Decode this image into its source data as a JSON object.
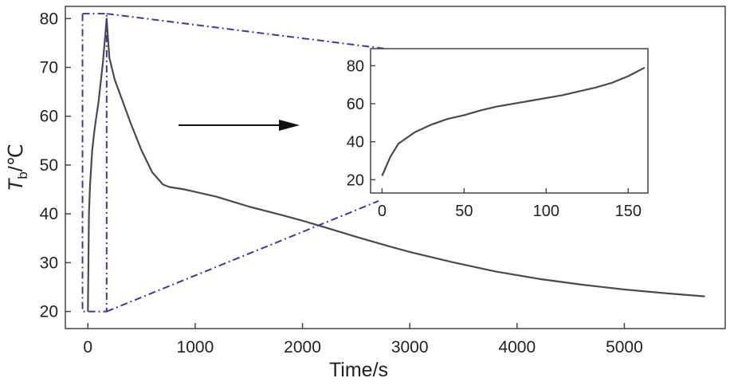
{
  "chart_data": [
    {
      "type": "line",
      "xlabel": "Time/s",
      "ylabel": {
        "main": "T",
        "sub": "b",
        "unit": "/℃"
      },
      "xlim": [
        -210,
        5940
      ],
      "ylim": [
        16.5,
        82.5
      ],
      "xticks": [
        0,
        1000,
        2000,
        3000,
        4000,
        5000
      ],
      "yticks": [
        20,
        30,
        40,
        50,
        60,
        70,
        80
      ],
      "grid": false,
      "color": "#4a4a4a",
      "series": [
        {
          "x": [
            0,
            10,
            20,
            40,
            60,
            80,
            100,
            120,
            140,
            160,
            175,
            200,
            250,
            300,
            400,
            500,
            600,
            700,
            760,
            900,
            1000,
            1200,
            1500,
            1800,
            2000,
            2200,
            2500,
            2800,
            3000,
            3400,
            3800,
            4200,
            4600,
            5000,
            5400,
            5750
          ],
          "y": [
            20,
            40,
            46,
            53,
            57,
            60,
            63,
            67,
            71,
            76,
            80,
            72,
            67.5,
            64.5,
            58.5,
            53,
            48.5,
            46,
            45.5,
            45,
            44.5,
            43.5,
            41.5,
            39.8,
            38.6,
            37.3,
            35.3,
            33.4,
            32.2,
            30.1,
            28.2,
            26.7,
            25.5,
            24.5,
            23.7,
            23.1
          ]
        }
      ],
      "zoom_box": {
        "x": [
          -50,
          175
        ],
        "y": [
          20,
          81
        ]
      },
      "annotation_arrow": true,
      "zoom_color": "#3a3aa6"
    },
    {
      "type": "line",
      "role": "inset",
      "xlim": [
        -7,
        162
      ],
      "ylim": [
        13,
        89
      ],
      "xticks": [
        0,
        50,
        100,
        150
      ],
      "yticks": [
        20,
        40,
        60,
        80
      ],
      "grid": false,
      "color": "#4a4a4a",
      "series": [
        {
          "x": [
            0,
            5,
            10,
            15,
            20,
            30,
            40,
            50,
            60,
            70,
            80,
            90,
            100,
            110,
            120,
            130,
            140,
            150,
            160
          ],
          "y": [
            22,
            32,
            39,
            42,
            45,
            49,
            52,
            54,
            56.5,
            58.5,
            60,
            61.5,
            63,
            64.5,
            66.5,
            68.5,
            71,
            74.5,
            79
          ]
        }
      ]
    }
  ]
}
